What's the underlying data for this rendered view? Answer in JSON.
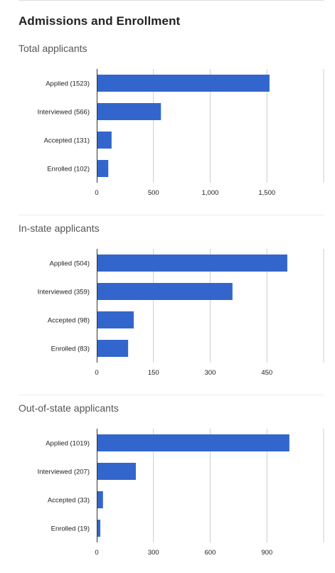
{
  "page": {
    "title": "Admissions and Enrollment"
  },
  "colors": {
    "bar": "#3366cc",
    "grid": "#cccccc",
    "axis": "#333333",
    "separator": "#ececec"
  },
  "chart_data": [
    {
      "type": "bar",
      "orientation": "horizontal",
      "title": "Total applicants",
      "categories": [
        "Applied (1523)",
        "Interviewed (566)",
        "Accepted (131)",
        "Enrolled (102)"
      ],
      "values": [
        1523,
        566,
        131,
        102
      ],
      "xlim": [
        0,
        2000
      ],
      "xticks": [
        0,
        500,
        1000,
        1500
      ],
      "xtick_labels": [
        "0",
        "500",
        "1,000",
        "1,500"
      ],
      "grid": true
    },
    {
      "type": "bar",
      "orientation": "horizontal",
      "title": "In-state applicants",
      "categories": [
        "Applied (504)",
        "Interviewed (359)",
        "Accepted (98)",
        "Enrolled (83)"
      ],
      "values": [
        504,
        359,
        98,
        83
      ],
      "xlim": [
        0,
        600
      ],
      "xticks": [
        0,
        150,
        300,
        450
      ],
      "xtick_labels": [
        "0",
        "150",
        "300",
        "450"
      ],
      "grid": true
    },
    {
      "type": "bar",
      "orientation": "horizontal",
      "title": "Out-of-state applicants",
      "categories": [
        "Applied (1019)",
        "Interviewed (207)",
        "Accepted (33)",
        "Enrolled (19)"
      ],
      "values": [
        1019,
        207,
        33,
        19
      ],
      "xlim": [
        0,
        1200
      ],
      "xticks": [
        0,
        300,
        600,
        900
      ],
      "xtick_labels": [
        "0",
        "300",
        "600",
        "900"
      ],
      "grid": true
    }
  ]
}
